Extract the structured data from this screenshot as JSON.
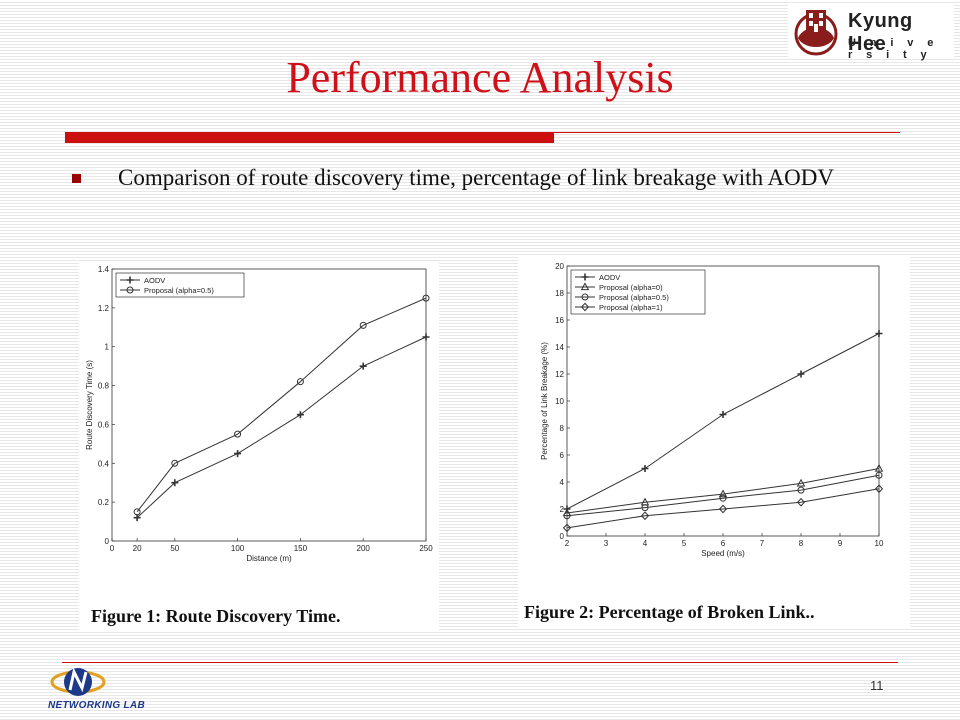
{
  "slide": {
    "title": "Performance Analysis",
    "bullet": "Comparison of route discovery time, percentage of link breakage with AODV",
    "page_number": "11"
  },
  "logos": {
    "university_name": "Kyung Hee",
    "university_sub": "U n i v e r s i t y",
    "lab": "NETWORKING LAB"
  },
  "colors": {
    "title": "#d01018",
    "rule": "#cc1010",
    "bullet": "#9a0000"
  },
  "chart_data": [
    {
      "type": "line",
      "caption": "Figure 1:  Route Discovery Time.",
      "xlabel": "Distance (m)",
      "ylabel": "Route Discovery Time (s)",
      "xlim": [
        0,
        250
      ],
      "ylim": [
        0,
        1.4
      ],
      "xticks": [
        0,
        20,
        50,
        100,
        150,
        200,
        250
      ],
      "yticks": [
        0,
        0.2,
        0.4,
        0.6,
        0.8,
        1,
        1.2,
        1.4
      ],
      "legend_position": "top-left",
      "x": [
        20,
        50,
        100,
        150,
        200,
        250
      ],
      "series": [
        {
          "name": "AODV",
          "marker": "plus",
          "values": [
            0.12,
            0.3,
            0.45,
            0.65,
            0.9,
            1.05
          ]
        },
        {
          "name": "Proposal (alpha=0.5)",
          "marker": "circle",
          "values": [
            0.15,
            0.4,
            0.55,
            0.82,
            1.11,
            1.25
          ]
        }
      ]
    },
    {
      "type": "line",
      "caption": "Figure 2:  Percentage of Broken Link..",
      "xlabel": "Speed (m/s)",
      "ylabel": "Percentage of Link Breakage (%)",
      "xlim": [
        2,
        10
      ],
      "ylim": [
        0,
        20
      ],
      "xticks": [
        2,
        3,
        4,
        5,
        6,
        7,
        8,
        9,
        10
      ],
      "yticks": [
        0,
        2,
        4,
        6,
        8,
        10,
        12,
        14,
        16,
        18,
        20
      ],
      "legend_position": "top-left",
      "x": [
        2,
        4,
        6,
        8,
        10
      ],
      "series": [
        {
          "name": "AODV",
          "marker": "plus",
          "values": [
            2,
            5,
            9,
            12,
            15
          ]
        },
        {
          "name": "Proposal (alpha=0)",
          "marker": "triangle",
          "values": [
            1.7,
            2.5,
            3.1,
            3.9,
            5
          ]
        },
        {
          "name": "Proposal (alpha=0.5)",
          "marker": "circle",
          "values": [
            1.5,
            2.1,
            2.8,
            3.4,
            4.5
          ]
        },
        {
          "name": "Proposal (alpha=1)",
          "marker": "diamond",
          "values": [
            0.6,
            1.5,
            2,
            2.5,
            3.5
          ]
        }
      ]
    }
  ]
}
